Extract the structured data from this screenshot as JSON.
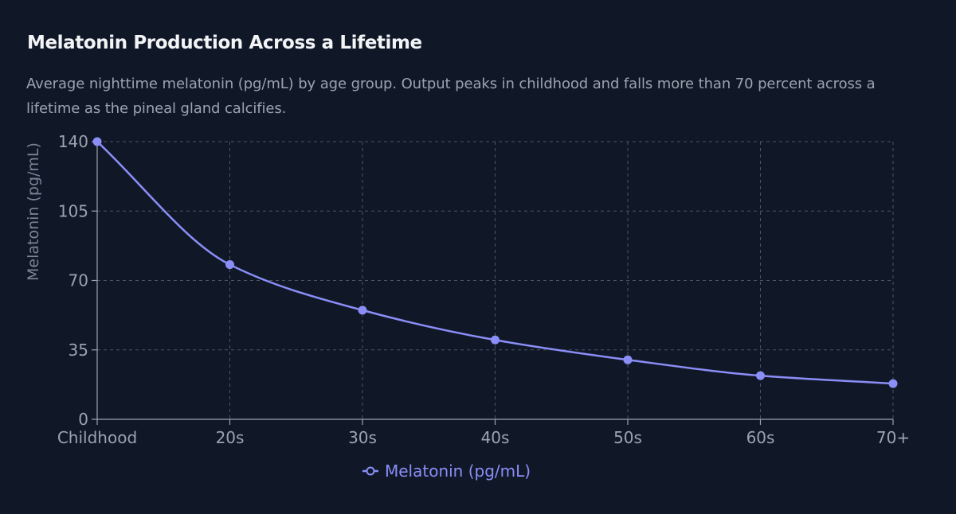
{
  "title": "Melatonin Production Across a Lifetime",
  "subtitle": "Average nighttime melatonin (pg/mL) by age group. Output peaks in childhood and falls more than 70 percent across a lifetime as the pineal gland calcifies.",
  "colors": {
    "background": "#101828",
    "series": "#8b8ef7",
    "grid": "#4b5563",
    "axis": "#9ca3af",
    "text": "#f3f4f6"
  },
  "chart_data": {
    "type": "line",
    "categories": [
      "Childhood",
      "20s",
      "30s",
      "40s",
      "50s",
      "60s",
      "70+"
    ],
    "series": [
      {
        "name": "Melatonin (pg/mL)",
        "values": [
          140,
          78,
          55,
          40,
          30,
          22,
          18
        ]
      }
    ],
    "ylabel": "Melatonin (pg/mL)",
    "xlabel": "",
    "ylim": [
      0,
      140
    ],
    "yticks": [
      0,
      35,
      70,
      105,
      140
    ],
    "grid": true,
    "legend": "bottom-center",
    "curve": "smooth"
  }
}
